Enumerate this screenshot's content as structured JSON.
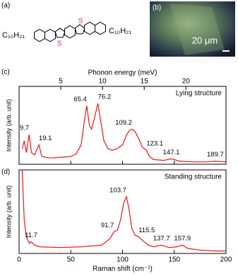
{
  "panel_a": {
    "label": "(a)",
    "substituent_left": "C₁₀H₂₁",
    "substituent_right": "C₁₀H₂₁",
    "heteroatoms": [
      "S",
      "S"
    ]
  },
  "panel_b": {
    "label": "(b)",
    "scale_bar": "20 μm"
  },
  "chart_data": [
    {
      "type": "line",
      "panel_label": "(c)",
      "annotation": "Lying structure",
      "ylabel": "Intensity (arb. unit)",
      "x2label": "Phonon energy (meV)",
      "x2lim": [
        0,
        24.8
      ],
      "x2ticks": [
        5,
        10,
        15,
        20
      ],
      "xlim": [
        0,
        200
      ],
      "ylim": [
        0,
        1
      ],
      "series": [
        {
          "color": "#e8171b",
          "x": [
            3,
            5,
            7,
            9.7,
            12,
            15,
            19.1,
            22,
            30,
            40,
            50,
            55,
            60,
            63,
            65.4,
            68,
            70,
            73,
            76.2,
            79,
            82,
            86,
            90,
            95,
            100,
            104,
            107,
            109.2,
            112,
            116,
            119,
            121,
            123.1,
            126,
            130,
            140,
            147.1,
            155,
            170,
            180,
            189.7,
            200
          ],
          "values": [
            0.2,
            0.3,
            0.15,
            0.38,
            0.15,
            0.12,
            0.25,
            0.1,
            0.08,
            0.09,
            0.1,
            0.13,
            0.25,
            0.55,
            0.75,
            0.5,
            0.45,
            0.6,
            0.78,
            0.55,
            0.3,
            0.2,
            0.18,
            0.2,
            0.25,
            0.38,
            0.44,
            0.45,
            0.42,
            0.32,
            0.22,
            0.2,
            0.18,
            0.1,
            0.06,
            0.05,
            0.07,
            0.04,
            0.03,
            0.03,
            0.04,
            0.03
          ]
        }
      ],
      "peaks": [
        9.7,
        19.1,
        65.4,
        76.2,
        109.2,
        123.1,
        147.1,
        189.7
      ]
    },
    {
      "type": "line",
      "panel_label": "(d)",
      "annotation": "Standing structure",
      "ylabel": "Intensity (arb. unit)",
      "xlabel": "Raman shift (cm⁻¹)",
      "xlim": [
        0,
        200
      ],
      "xticks": [
        0,
        50,
        100,
        150,
        200
      ],
      "ylim": [
        0,
        1
      ],
      "series": [
        {
          "color": "#e8171b",
          "x": [
            3,
            5,
            7,
            10,
            11.7,
            15,
            20,
            40,
            60,
            80,
            88,
            91.7,
            95,
            98,
            101,
            103.7,
            106,
            109,
            112,
            115.5,
            120,
            125,
            130,
            137.7,
            145,
            152,
            157.9,
            163,
            175,
            190,
            200
          ],
          "values": [
            1.0,
            0.4,
            0.2,
            0.12,
            0.14,
            0.1,
            0.08,
            0.07,
            0.08,
            0.1,
            0.18,
            0.26,
            0.28,
            0.4,
            0.6,
            0.68,
            0.55,
            0.3,
            0.22,
            0.2,
            0.15,
            0.1,
            0.08,
            0.1,
            0.07,
            0.08,
            0.1,
            0.06,
            0.04,
            0.03,
            0.03
          ]
        }
      ],
      "peaks": [
        11.7,
        91.7,
        103.7,
        115.5,
        137.7,
        157.9
      ]
    }
  ]
}
